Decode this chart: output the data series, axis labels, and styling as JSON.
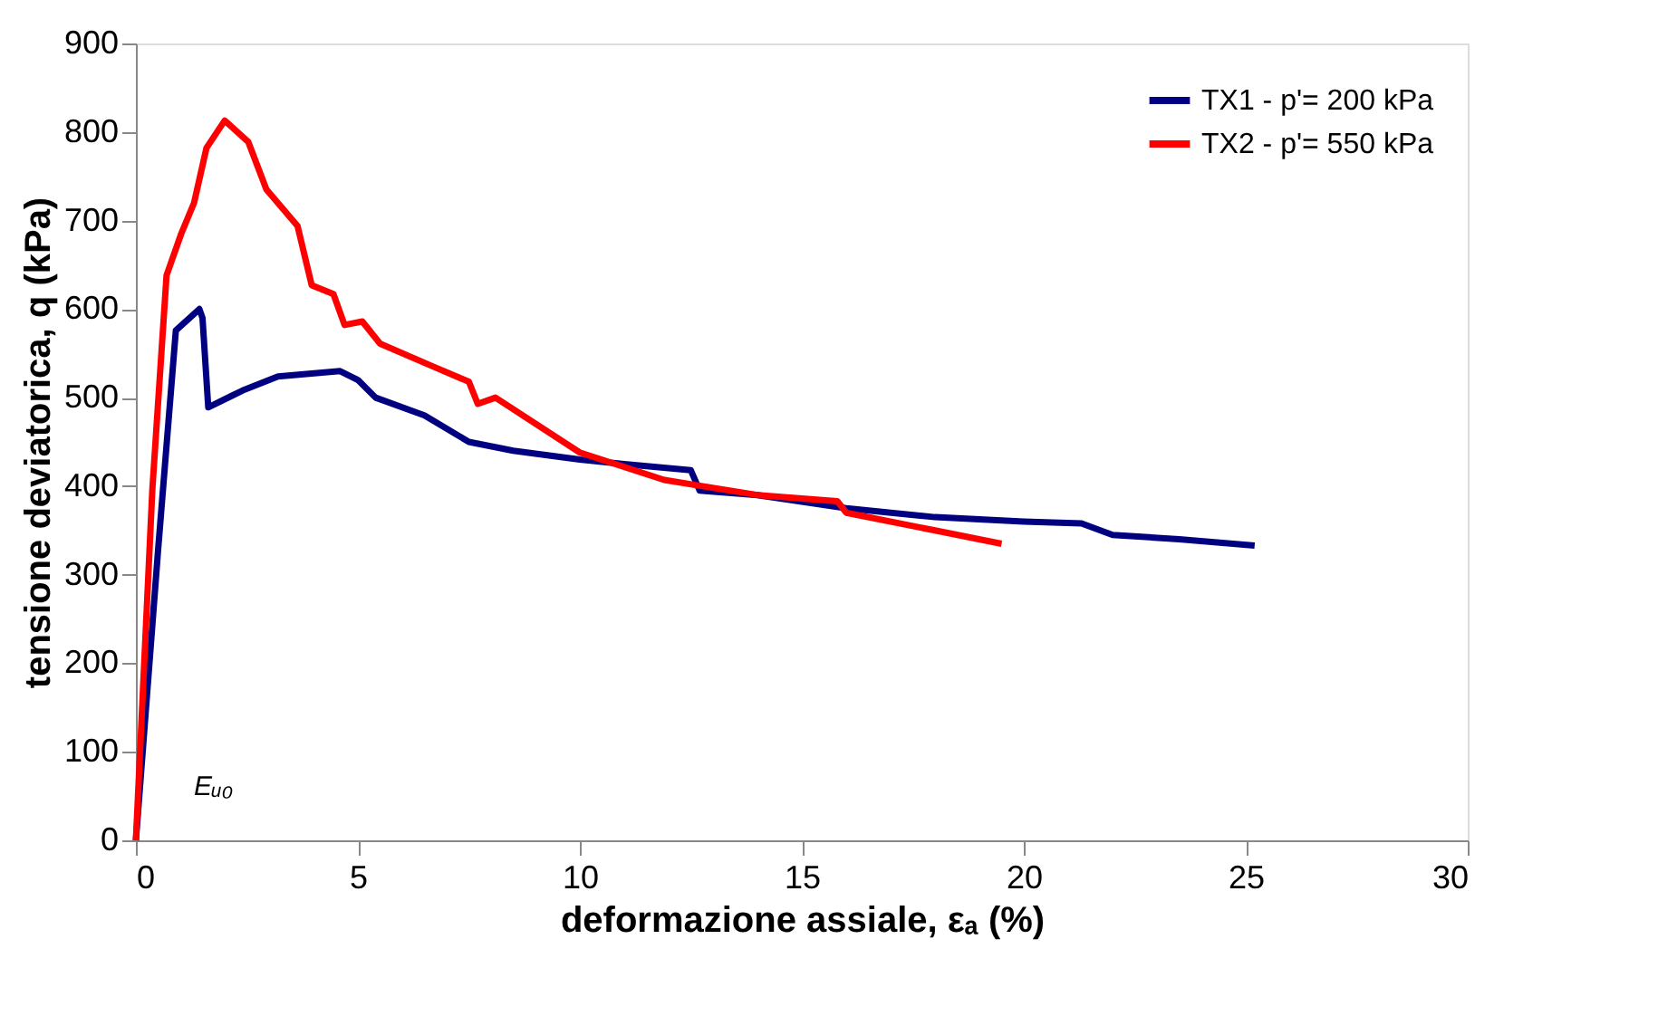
{
  "chart_data": {
    "type": "line",
    "xlabel": "deformazione assiale, εₐ (%)",
    "ylabel": "tensione deviatorica,  q (kPa)",
    "xlim": [
      0,
      30
    ],
    "xticks": [
      0,
      5,
      10,
      15,
      20,
      25,
      30
    ],
    "ylim": [
      0,
      900
    ],
    "yticks": [
      0,
      100,
      200,
      300,
      400,
      500,
      600,
      700,
      800,
      900
    ],
    "grid": false,
    "legend": "top right",
    "line_style": "solid",
    "marker": "none",
    "annotations": [
      "Eᵤ₀"
    ],
    "series": [
      {
        "name": "TX1 - p'= 200 kPa",
        "color": "#000080",
        "x": [
          0,
          0.5,
          0.9,
          1.43,
          1.5,
          1.63,
          2.4,
          3.2,
          4.6,
          5.0,
          5.4,
          6.5,
          7.5,
          8.5,
          10,
          11,
          12.5,
          12.7,
          14,
          16,
          18,
          20,
          21.3,
          22,
          23.5,
          25.2
        ],
        "values": [
          0,
          328,
          576,
          600,
          590,
          489,
          508,
          524,
          530,
          520,
          500,
          480,
          450,
          440,
          430,
          425,
          418,
          395,
          390,
          375,
          365,
          360,
          358,
          345,
          340,
          333
        ]
      },
      {
        "name": "TX2 - p'= 550 kPa",
        "color": "#ff0000",
        "x": [
          0,
          0.37,
          0.69,
          1.02,
          1.31,
          1.59,
          2.0,
          2.53,
          2.94,
          3.64,
          3.96,
          4.45,
          4.7,
          5.1,
          5.5,
          6.7,
          7.5,
          7.7,
          8.1,
          10.0,
          11.9,
          14,
          15.8,
          16,
          18,
          19.5
        ],
        "values": [
          0,
          396,
          638,
          685,
          720,
          782,
          813,
          789,
          735,
          694,
          627,
          617,
          582,
          586,
          561,
          535,
          518,
          493,
          500,
          438,
          407,
          390,
          383,
          370,
          350,
          335
        ]
      }
    ]
  }
}
